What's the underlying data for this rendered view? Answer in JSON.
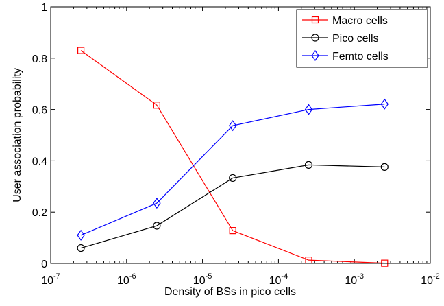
{
  "chart_data": {
    "type": "line",
    "title": "",
    "xlabel": "Density of BSs in pico cells",
    "ylabel": "User association probability",
    "xscale": "log",
    "xlim": [
      1e-07,
      0.01
    ],
    "ylim": [
      0,
      1
    ],
    "x": [
      2.5e-07,
      2.5e-06,
      2.5e-05,
      0.00025,
      0.0025
    ],
    "x_ticks": [
      {
        "value": 1e-07,
        "base": "10",
        "exp": "-7"
      },
      {
        "value": 1e-06,
        "base": "10",
        "exp": "-6"
      },
      {
        "value": 1e-05,
        "base": "10",
        "exp": "-5"
      },
      {
        "value": 0.0001,
        "base": "10",
        "exp": "-4"
      },
      {
        "value": 0.001,
        "base": "10",
        "exp": "-3"
      },
      {
        "value": 0.01,
        "base": "10",
        "exp": "-2"
      }
    ],
    "y_ticks": [
      {
        "value": 0,
        "label": "0"
      },
      {
        "value": 0.2,
        "label": "0.2"
      },
      {
        "value": 0.4,
        "label": "0.4"
      },
      {
        "value": 0.6,
        "label": "0.6"
      },
      {
        "value": 0.8,
        "label": "0.8"
      },
      {
        "value": 1,
        "label": "1"
      }
    ],
    "grid": false,
    "legend_position": "top-right",
    "series": [
      {
        "name": "Macro cells",
        "color": "#ff0000",
        "marker": "square",
        "values": [
          0.83,
          0.617,
          0.128,
          0.013,
          0.001
        ]
      },
      {
        "name": "Pico cells",
        "color": "#000000",
        "marker": "circle",
        "values": [
          0.06,
          0.147,
          0.333,
          0.384,
          0.376
        ]
      },
      {
        "name": "Femto cells",
        "color": "#0000ff",
        "marker": "diamond",
        "values": [
          0.11,
          0.235,
          0.537,
          0.6,
          0.621
        ]
      }
    ]
  }
}
